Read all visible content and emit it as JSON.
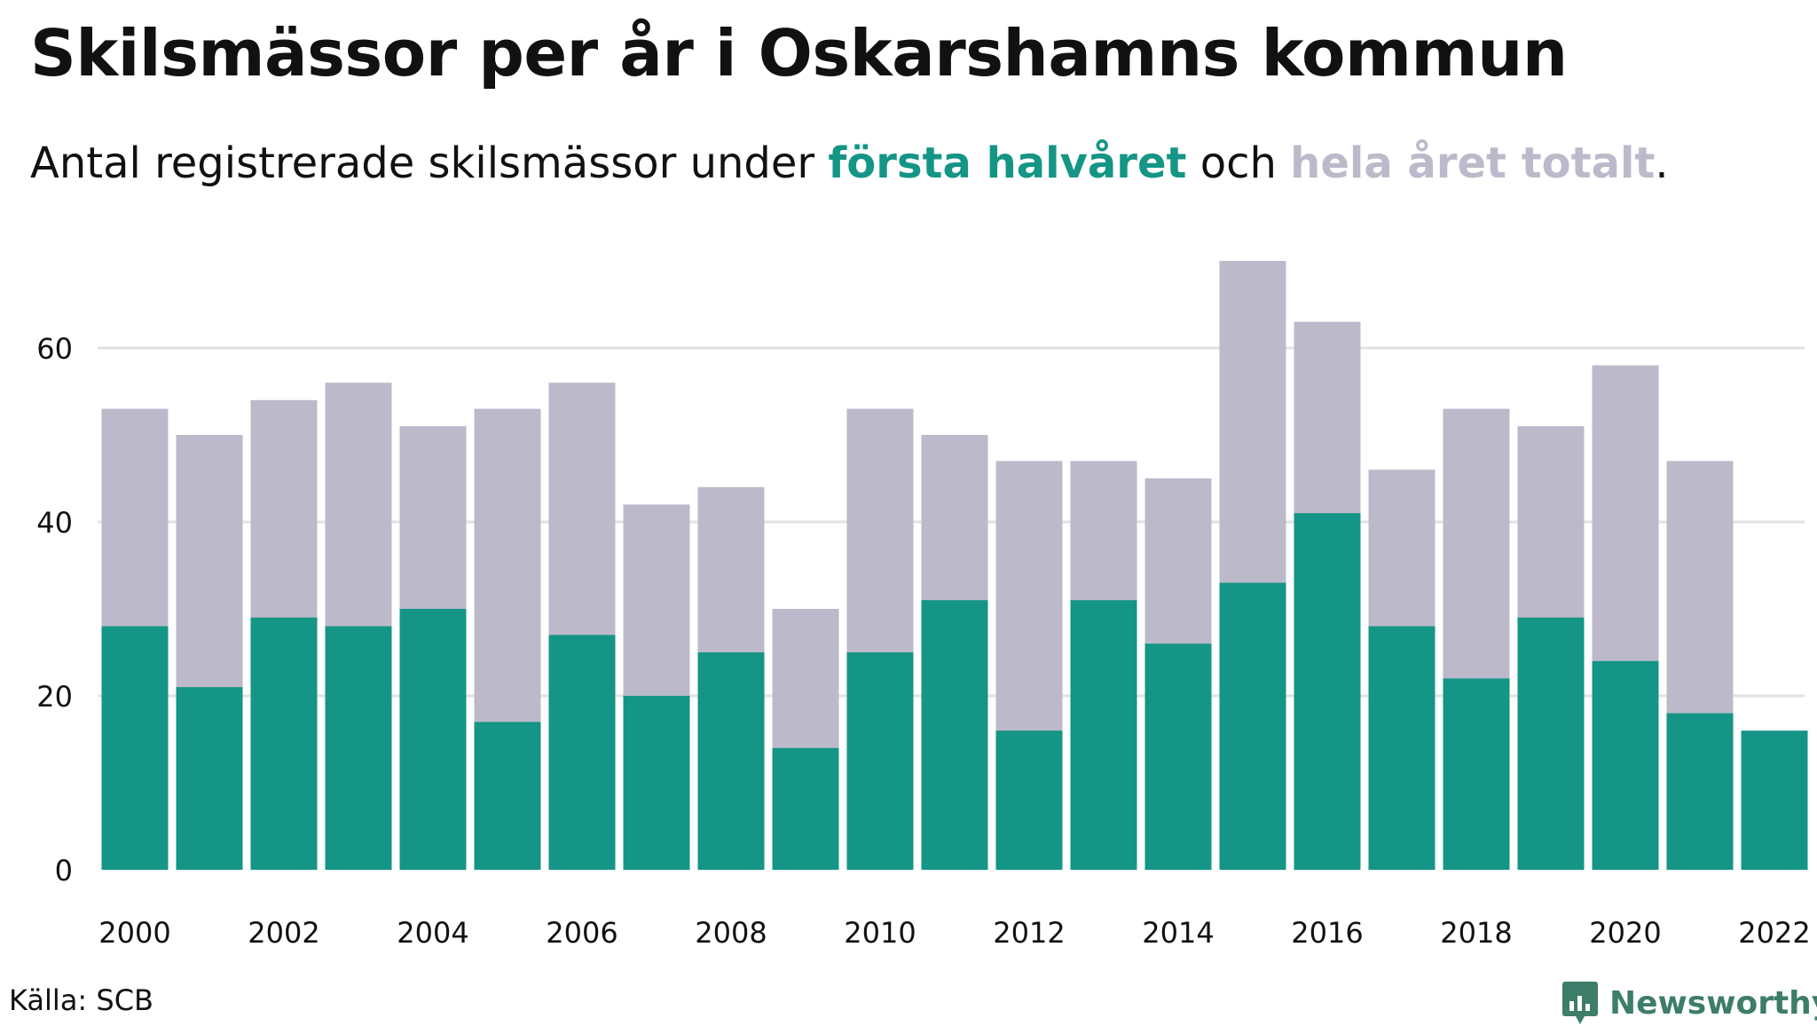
{
  "title": "Skilsmässor per år i Oskarshamns kommun",
  "subtitle": {
    "before": "Antal registrerade skilsmässor under ",
    "highlight_first": "första halvåret",
    "middle": " och ",
    "highlight_total": "hela året totalt",
    "after": "."
  },
  "source": "Källa: SCB",
  "brand": {
    "name": "Newsworthy",
    "icon": "newsworthy-logo-icon"
  },
  "colors": {
    "first_half": "#149585",
    "full_year": "#bcbaca",
    "grid": "#e2e2e2",
    "brand": "#3d7d6a"
  },
  "chart_data": {
    "type": "bar",
    "x": [
      2000,
      2001,
      2002,
      2003,
      2004,
      2005,
      2006,
      2007,
      2008,
      2009,
      2010,
      2011,
      2012,
      2013,
      2014,
      2015,
      2016,
      2017,
      2018,
      2019,
      2020,
      2021,
      2022
    ],
    "x_tick_labels": [
      "2000",
      "2002",
      "2004",
      "2006",
      "2008",
      "2010",
      "2012",
      "2014",
      "2016",
      "2018",
      "2020",
      "2022"
    ],
    "y_tick_labels": [
      "0",
      "20",
      "40",
      "60"
    ],
    "ylim": [
      0,
      70
    ],
    "grid": true,
    "series": [
      {
        "key": "full_year",
        "values": [
          53,
          50,
          54,
          56,
          51,
          53,
          56,
          42,
          44,
          30,
          53,
          50,
          47,
          47,
          45,
          70,
          63,
          46,
          53,
          51,
          58,
          47,
          null
        ]
      },
      {
        "key": "first_half",
        "values": [
          28,
          21,
          29,
          28,
          30,
          17,
          27,
          20,
          25,
          14,
          25,
          31,
          16,
          31,
          26,
          33,
          41,
          28,
          22,
          29,
          24,
          18,
          16
        ]
      }
    ]
  }
}
